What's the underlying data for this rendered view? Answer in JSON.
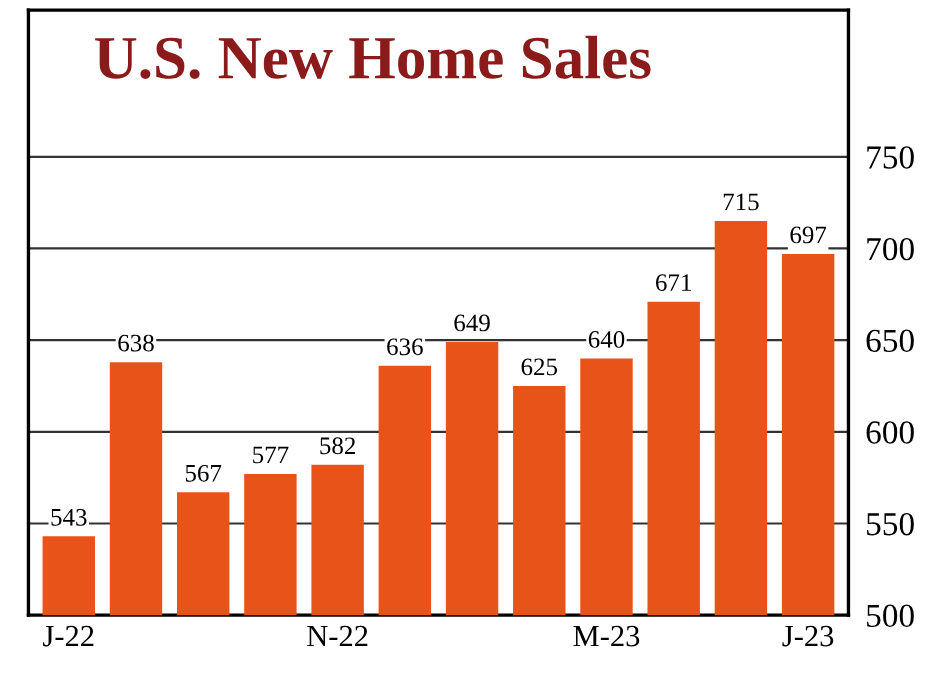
{
  "chart_data": {
    "type": "bar",
    "title": "U.S. New Home Sales",
    "categories": [
      "J-22",
      null,
      null,
      null,
      "N-22",
      null,
      null,
      null,
      "M-23",
      null,
      null,
      "J-23"
    ],
    "values": [
      543,
      638,
      567,
      577,
      582,
      636,
      649,
      625,
      640,
      671,
      715,
      697
    ],
    "color": "#e8531a",
    "ylim": [
      500,
      830
    ],
    "yticks": [
      500,
      550,
      600,
      650,
      700,
      750
    ],
    "grid": "y",
    "data_labels": true
  }
}
